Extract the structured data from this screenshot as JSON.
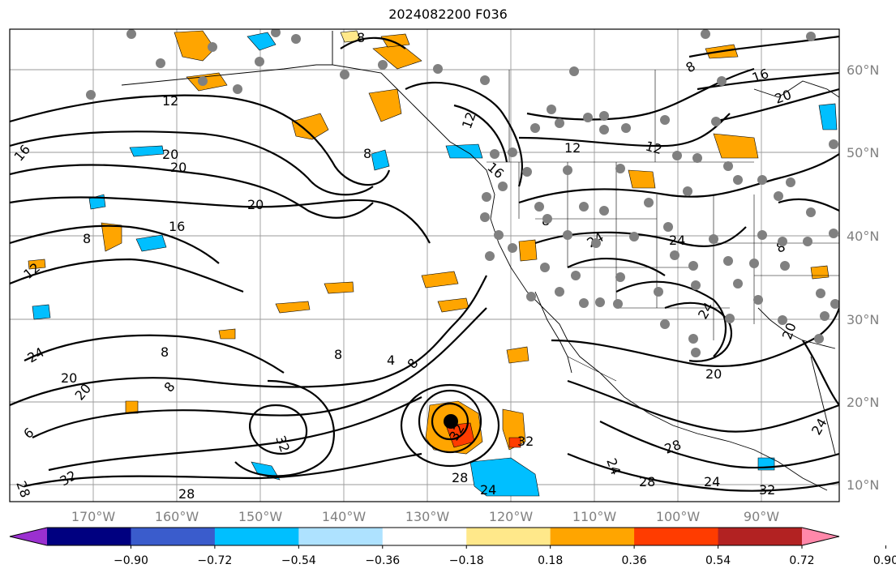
{
  "title": "2024082200 F036",
  "longitude_labels": [
    "170°W",
    "160°W",
    "150°W",
    "140°W",
    "130°W",
    "120°W",
    "110°W",
    "100°W",
    "90°W"
  ],
  "latitude_labels": [
    "60°N",
    "50°N",
    "40°N",
    "30°N",
    "20°N",
    "10°N"
  ],
  "colorbar": {
    "ticks": [
      "−0.90",
      "−0.72",
      "−0.54",
      "−0.36",
      "−0.18",
      "0.18",
      "0.36",
      "0.54",
      "0.72",
      "0.90"
    ],
    "colors": [
      "#9b30d0",
      "#000080",
      "#3a5ccc",
      "#00bfff",
      "#aee2ff",
      "#ffffff",
      "#ffe88a",
      "#ffa500",
      "#ff3c00",
      "#b22222",
      "#ff88aa"
    ]
  },
  "contour_labels": [
    "12",
    "16",
    "20",
    "20",
    "8",
    "16",
    "20",
    "8",
    "12",
    "24",
    "20",
    "20",
    "8",
    "8",
    "4",
    "8",
    "8",
    "32",
    "6",
    "32",
    "28",
    "28",
    "24",
    "32",
    "28",
    "32",
    "24",
    "28",
    "24",
    "32",
    "20",
    "24",
    "28",
    "8",
    "12",
    "12",
    "16",
    "8",
    "24",
    "24",
    "8",
    "16",
    "20",
    "20",
    "24",
    "12",
    "8"
  ],
  "shading_colors": {
    "orange": "#ffa500",
    "red": "#ff3c00",
    "cyan": "#00bfff",
    "light_cyan": "#aee2ff",
    "yellow": "#ffe88a",
    "station_gray": "#808080"
  }
}
